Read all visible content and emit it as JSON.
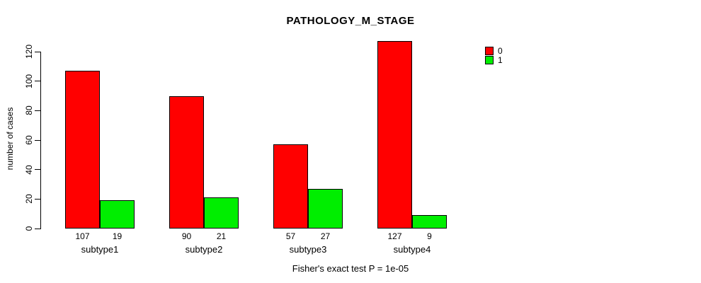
{
  "chart_data": {
    "type": "bar",
    "title": "PATHOLOGY_M_STAGE",
    "categories": [
      "subtype1",
      "subtype2",
      "subtype3",
      "subtype4"
    ],
    "series": [
      {
        "name": "0",
        "color": "#FF0000",
        "values": [
          107,
          90,
          57,
          127
        ]
      },
      {
        "name": "1",
        "color": "#00EE00",
        "values": [
          19,
          21,
          27,
          9
        ]
      }
    ],
    "xlabel": "",
    "ylabel": "number of cases",
    "yticks": [
      0,
      20,
      40,
      60,
      80,
      100,
      120
    ],
    "ylim": [
      0,
      127
    ],
    "grid": false,
    "legend_position": "top-right",
    "bar_value_labels": [
      [
        107,
        90,
        57,
        127
      ],
      [
        19,
        21,
        27,
        9
      ]
    ],
    "annotation": "Fisher's exact test P = 1e-05"
  }
}
